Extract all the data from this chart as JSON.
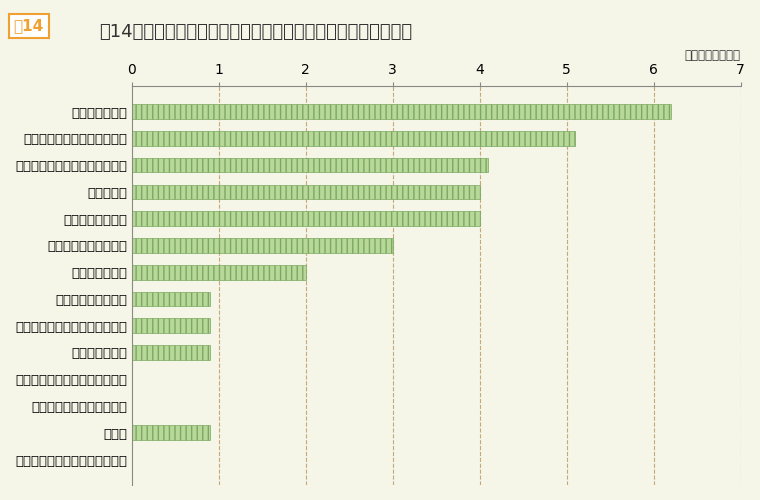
{
  "title": "図14　従業員数が多い年齢層があることへの対応（複数回答）",
  "unit_label": "（単位：企業数）",
  "categories": [
    "中高齢層の活用",
    "賃金制度・人事制度の見直し",
    "昇任・昇格における厳格な選抜",
    "研修の充実",
    "女性の登用の推進",
    "高度専門職制度の活用",
    "中途採用の拡大",
    "非正規従業員の活用",
    "業務の外部化、業務範囲の縮小",
    "抜擢人事の推進",
    "他社等への出向・派遣等の拡大",
    "退職勧奨等による人員削減",
    "その他",
    "特に取り組んでいる事項はない"
  ],
  "values": [
    6.2,
    5.1,
    4.1,
    4.0,
    4.0,
    3.0,
    2.0,
    0.9,
    0.9,
    0.9,
    0.0,
    0.0,
    0.9,
    0.0
  ],
  "xlim": [
    0,
    7
  ],
  "xticks": [
    0,
    1,
    2,
    3,
    4,
    5,
    6,
    7
  ],
  "bar_face_color": "#b8d89a",
  "bar_edge_color": "#7aa860",
  "bar_hatch": "|||",
  "background_color": "#f5f5e8",
  "grid_color": "#c8a878",
  "title_color": "#333333",
  "label_color": "#333333",
  "fig14_box_color": "#f0a030",
  "fig14_text_color": "#f0a030",
  "title_fontsize": 13,
  "label_fontsize": 9.5,
  "tick_fontsize": 10
}
